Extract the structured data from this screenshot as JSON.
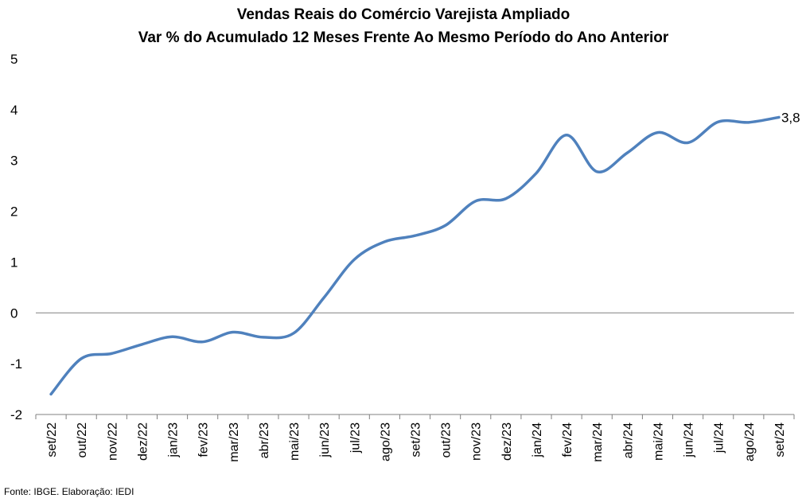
{
  "chart_data": {
    "type": "line",
    "title": "Vendas Reais do Comércio Varejista Ampliado",
    "subtitle": "Var % do Acumulado 12 Meses Frente Ao Mesmo Período do Ano Anterior",
    "xlabel": "",
    "ylabel": "",
    "categories": [
      "set/22",
      "out/22",
      "nov/22",
      "dez/22",
      "jan/23",
      "fev/23",
      "mar/23",
      "abr/23",
      "mai/23",
      "jun/23",
      "jul/23",
      "ago/23",
      "set/23",
      "out/23",
      "nov/23",
      "dez/23",
      "jan/24",
      "fev/24",
      "mar/24",
      "abr/24",
      "mai/24",
      "jun/24",
      "jul/24",
      "ago/24",
      "set/24"
    ],
    "series": [
      {
        "values": [
          -1.6,
          -0.9,
          -0.8,
          -0.62,
          -0.47,
          -0.57,
          -0.38,
          -0.48,
          -0.4,
          0.3,
          1.05,
          1.4,
          1.52,
          1.72,
          2.2,
          2.25,
          2.75,
          3.5,
          2.78,
          3.15,
          3.55,
          3.35,
          3.76,
          3.75,
          3.85
        ]
      }
    ],
    "ylim": [
      -2,
      5
    ],
    "yticks": [
      -2,
      -1,
      0,
      1,
      2,
      3,
      4,
      5
    ],
    "last_label": "3,8",
    "colors": {
      "line": "#4F81BD",
      "axis": "#808080"
    },
    "grid": false
  },
  "source": "Fonte: IBGE. Elaboração: IEDI"
}
